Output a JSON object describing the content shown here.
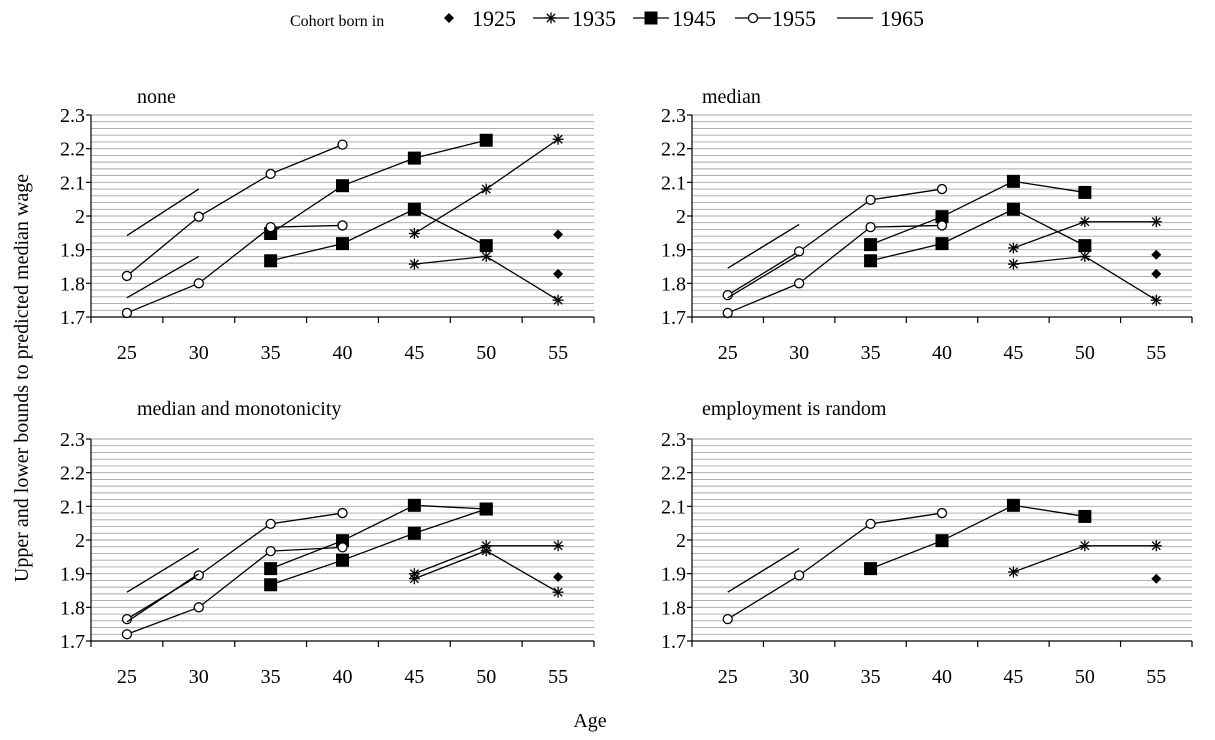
{
  "legend": {
    "title": "Cohort born in",
    "entries": [
      "1925",
      "1935",
      "1945",
      "1955",
      "1965"
    ]
  },
  "ylabel": "Upper and lower bounds to predicted median wage",
  "xlabel": "Age",
  "chart_data": [
    {
      "type": "line",
      "title": "none",
      "x_ticks": [
        25,
        30,
        35,
        40,
        45,
        50,
        55
      ],
      "ylim": [
        1.7,
        2.3
      ],
      "y_ticks": [
        1.7,
        1.8,
        1.9,
        2.0,
        2.1,
        2.2,
        2.3
      ],
      "grid": true,
      "series": [
        {
          "name": "1925",
          "marker": "diamond",
          "segments": [
            [
              [
                55,
                1.945
              ]
            ],
            [
              [
                55,
                1.828
              ]
            ]
          ]
        },
        {
          "name": "1935",
          "marker": "asterisk",
          "segments": [
            [
              [
                45,
                1.948
              ],
              [
                50,
                2.08
              ],
              [
                55,
                2.228
              ]
            ],
            [
              [
                45,
                1.857
              ],
              [
                50,
                1.88
              ],
              [
                55,
                1.75
              ]
            ]
          ]
        },
        {
          "name": "1945",
          "marker": "square",
          "segments": [
            [
              [
                35,
                1.948
              ],
              [
                40,
                2.09
              ],
              [
                45,
                2.172
              ],
              [
                50,
                2.225
              ]
            ],
            [
              [
                35,
                1.867
              ],
              [
                40,
                1.918
              ],
              [
                45,
                2.02
              ],
              [
                50,
                1.912
              ]
            ]
          ]
        },
        {
          "name": "1955",
          "marker": "circle",
          "segments": [
            [
              [
                25,
                1.822
              ],
              [
                30,
                1.998
              ],
              [
                35,
                2.125
              ],
              [
                40,
                2.212
              ]
            ],
            [
              [
                25,
                1.712
              ],
              [
                30,
                1.8
              ],
              [
                35,
                1.967
              ],
              [
                40,
                1.972
              ]
            ]
          ]
        },
        {
          "name": "1965",
          "marker": "none",
          "segments": [
            [
              [
                25,
                1.942
              ],
              [
                30,
                2.08
              ]
            ],
            [
              [
                25,
                1.757
              ],
              [
                30,
                1.88
              ]
            ]
          ]
        }
      ]
    },
    {
      "type": "line",
      "title": "median",
      "x_ticks": [
        25,
        30,
        35,
        40,
        45,
        50,
        55
      ],
      "ylim": [
        1.7,
        2.3
      ],
      "y_ticks": [
        1.7,
        1.8,
        1.9,
        2.0,
        2.1,
        2.2,
        2.3
      ],
      "grid": true,
      "series": [
        {
          "name": "1925",
          "marker": "diamond",
          "segments": [
            [
              [
                55,
                1.885
              ]
            ],
            [
              [
                55,
                1.828
              ]
            ]
          ]
        },
        {
          "name": "1935",
          "marker": "asterisk",
          "segments": [
            [
              [
                45,
                1.905
              ],
              [
                50,
                1.983
              ],
              [
                55,
                1.983
              ]
            ],
            [
              [
                45,
                1.857
              ],
              [
                50,
                1.88
              ],
              [
                55,
                1.75
              ]
            ]
          ]
        },
        {
          "name": "1945",
          "marker": "square",
          "segments": [
            [
              [
                35,
                1.915
              ],
              [
                40,
                1.998
              ],
              [
                45,
                2.103
              ],
              [
                50,
                2.07
              ]
            ],
            [
              [
                35,
                1.867
              ],
              [
                40,
                1.918
              ],
              [
                45,
                2.02
              ],
              [
                50,
                1.912
              ]
            ]
          ]
        },
        {
          "name": "1955",
          "marker": "circle",
          "segments": [
            [
              [
                25,
                1.765
              ],
              [
                30,
                1.895
              ],
              [
                35,
                2.048
              ],
              [
                40,
                2.08
              ]
            ],
            [
              [
                25,
                1.712
              ],
              [
                30,
                1.8
              ],
              [
                35,
                1.967
              ],
              [
                40,
                1.972
              ]
            ]
          ]
        },
        {
          "name": "1965",
          "marker": "none",
          "segments": [
            [
              [
                25,
                1.845
              ],
              [
                30,
                1.975
              ]
            ],
            [
              [
                25,
                1.757
              ],
              [
                30,
                1.885
              ]
            ]
          ]
        }
      ]
    },
    {
      "type": "line",
      "title": "median and monotonicity",
      "x_ticks": [
        25,
        30,
        35,
        40,
        45,
        50,
        55
      ],
      "ylim": [
        1.7,
        2.3
      ],
      "y_ticks": [
        1.7,
        1.8,
        1.9,
        2.0,
        2.1,
        2.2,
        2.3
      ],
      "grid": true,
      "series": [
        {
          "name": "1925",
          "marker": "diamond",
          "segments": [
            [
              [
                55,
                1.89
              ]
            ]
          ]
        },
        {
          "name": "1935",
          "marker": "asterisk",
          "segments": [
            [
              [
                45,
                1.9
              ],
              [
                50,
                1.983
              ],
              [
                55,
                1.983
              ]
            ],
            [
              [
                45,
                1.885
              ],
              [
                50,
                1.968
              ],
              [
                55,
                1.845
              ]
            ]
          ]
        },
        {
          "name": "1945",
          "marker": "square",
          "segments": [
            [
              [
                35,
                1.915
              ],
              [
                40,
                1.998
              ],
              [
                45,
                2.103
              ],
              [
                50,
                2.092
              ]
            ],
            [
              [
                35,
                1.867
              ],
              [
                40,
                1.94
              ],
              [
                45,
                2.02
              ],
              [
                50,
                2.092
              ]
            ]
          ]
        },
        {
          "name": "1955",
          "marker": "circle",
          "segments": [
            [
              [
                25,
                1.765
              ],
              [
                30,
                1.895
              ],
              [
                35,
                2.048
              ],
              [
                40,
                2.08
              ]
            ],
            [
              [
                25,
                1.72
              ],
              [
                30,
                1.8
              ],
              [
                35,
                1.967
              ],
              [
                40,
                1.978
              ]
            ]
          ]
        },
        {
          "name": "1965",
          "marker": "none",
          "segments": [
            [
              [
                25,
                1.845
              ],
              [
                30,
                1.975
              ]
            ],
            [
              [
                25,
                1.757
              ],
              [
                30,
                1.9
              ]
            ]
          ]
        }
      ]
    },
    {
      "type": "line",
      "title": "employment is random",
      "x_ticks": [
        25,
        30,
        35,
        40,
        45,
        50,
        55
      ],
      "ylim": [
        1.7,
        2.3
      ],
      "y_ticks": [
        1.7,
        1.8,
        1.9,
        2.0,
        2.1,
        2.2,
        2.3
      ],
      "grid": true,
      "series": [
        {
          "name": "1925",
          "marker": "diamond",
          "segments": [
            [
              [
                55,
                1.885
              ]
            ]
          ]
        },
        {
          "name": "1935",
          "marker": "asterisk",
          "segments": [
            [
              [
                45,
                1.905
              ],
              [
                50,
                1.983
              ],
              [
                55,
                1.983
              ]
            ]
          ]
        },
        {
          "name": "1945",
          "marker": "square",
          "segments": [
            [
              [
                35,
                1.915
              ],
              [
                40,
                1.998
              ],
              [
                45,
                2.103
              ],
              [
                50,
                2.07
              ]
            ]
          ]
        },
        {
          "name": "1955",
          "marker": "circle",
          "segments": [
            [
              [
                25,
                1.765
              ],
              [
                30,
                1.895
              ],
              [
                35,
                2.048
              ],
              [
                40,
                2.08
              ]
            ]
          ]
        },
        {
          "name": "1965",
          "marker": "none",
          "segments": [
            [
              [
                25,
                1.845
              ],
              [
                30,
                1.975
              ]
            ]
          ]
        }
      ]
    }
  ]
}
